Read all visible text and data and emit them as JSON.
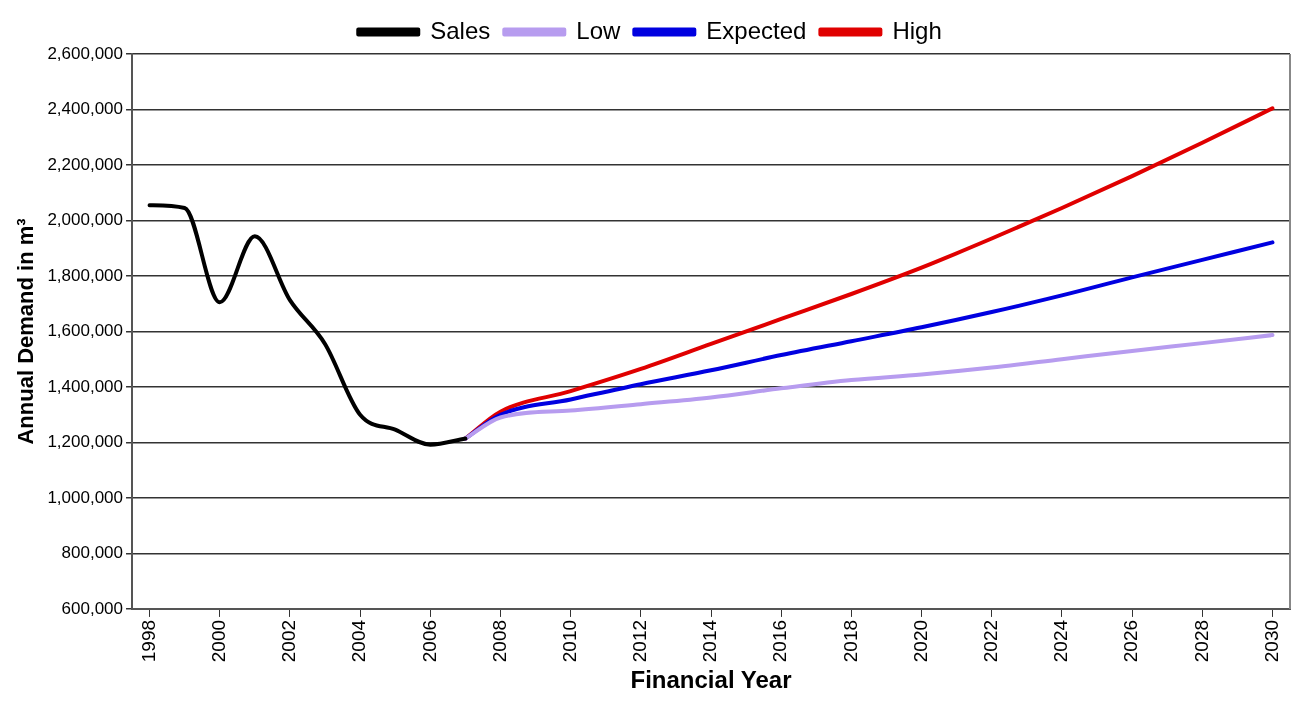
{
  "chart_data": {
    "type": "line",
    "xlabel": "Financial Year",
    "ylabel": "Annual Demand in m³",
    "series": [
      {
        "name": "Sales",
        "color": "#000000",
        "x": [
          1998,
          1999,
          2000,
          2001,
          2002,
          2003,
          2004,
          2005,
          2006,
          2007
        ],
        "values": [
          2055000,
          2045000,
          1705000,
          1943000,
          1713000,
          1555000,
          1300000,
          1246000,
          1192000,
          1214000
        ]
      },
      {
        "name": "Low",
        "color": "#b79cef",
        "x": [
          2007,
          2008,
          2010,
          2012,
          2014,
          2016,
          2018,
          2020,
          2022,
          2024,
          2026,
          2028,
          2030
        ],
        "values": [
          1214000,
          1290000,
          1315000,
          1338000,
          1362000,
          1395000,
          1425000,
          1445000,
          1470000,
          1500000,
          1530000,
          1558000,
          1587000
        ]
      },
      {
        "name": "Expected",
        "color": "#0000e0",
        "x": [
          2007,
          2008,
          2010,
          2012,
          2014,
          2016,
          2018,
          2020,
          2022,
          2024,
          2026,
          2028,
          2030
        ],
        "values": [
          1214000,
          1300000,
          1355000,
          1410000,
          1460000,
          1515000,
          1565000,
          1615000,
          1670000,
          1730000,
          1795000,
          1858000,
          1921000
        ]
      },
      {
        "name": "High",
        "color": "#e00000",
        "x": [
          2007,
          2008,
          2010,
          2012,
          2014,
          2016,
          2018,
          2020,
          2022,
          2024,
          2026,
          2028,
          2030
        ],
        "values": [
          1214000,
          1311000,
          1385000,
          1465000,
          1555000,
          1645000,
          1735000,
          1830000,
          1935000,
          2045000,
          2160000,
          2280000,
          2404000
        ]
      }
    ],
    "xlim": [
      1997.5,
      2030.5
    ],
    "xticks": [
      1998,
      2000,
      2002,
      2004,
      2006,
      2008,
      2010,
      2012,
      2014,
      2016,
      2018,
      2020,
      2022,
      2024,
      2026,
      2028,
      2030
    ],
    "ylim": [
      600000,
      2600000
    ],
    "yticks": [
      {
        "value": 600000,
        "label": "600,000"
      },
      {
        "value": 800000,
        "label": "800,000"
      },
      {
        "value": 1000000,
        "label": "1,000,000"
      },
      {
        "value": 1200000,
        "label": "1,200,000"
      },
      {
        "value": 1400000,
        "label": "1,400,000"
      },
      {
        "value": 1600000,
        "label": "1,600,000"
      },
      {
        "value": 1800000,
        "label": "1,800,000"
      },
      {
        "value": 2000000,
        "label": "2,000,000"
      },
      {
        "value": 2200000,
        "label": "2,200,000"
      },
      {
        "value": 2400000,
        "label": "2,400,000"
      },
      {
        "value": 2600000,
        "label": "2,600,000"
      }
    ],
    "grid": "y",
    "legend": "top",
    "marker": "none",
    "line_style": "solid"
  }
}
